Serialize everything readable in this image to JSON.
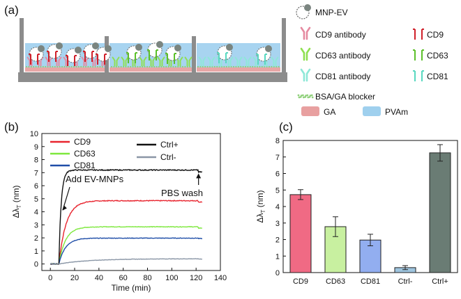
{
  "panel_labels": {
    "a": "(a)",
    "b": "(b)",
    "c": "(c)"
  },
  "schematic_legend": [
    {
      "label": "MNP-EV",
      "kind": "mnp-ev"
    },
    {
      "label": "CD9 antibody",
      "kind": "antibody",
      "color": "#e58aa0"
    },
    {
      "label": "CD63 antibody",
      "kind": "antibody",
      "color": "#8fe050"
    },
    {
      "label": "CD81 antibody",
      "kind": "antibody",
      "color": "#8ee8d8"
    },
    {
      "label": "BSA/GA blocker",
      "kind": "blocker",
      "color": "#8fd07a"
    },
    {
      "label": "GA",
      "kind": "swatch",
      "color": "#e8a0a0"
    },
    {
      "label": "PVAm",
      "kind": "swatch",
      "color": "#9fd0ee"
    },
    {
      "label": "CD9",
      "kind": "receptor",
      "color": "#d0202a"
    },
    {
      "label": "CD63",
      "kind": "receptor",
      "color": "#5cc02a"
    },
    {
      "label": "CD81",
      "kind": "receptor",
      "color": "#58d8c0"
    }
  ],
  "chart_data": [
    {
      "id": "b",
      "type": "line",
      "xlabel": "Time (min)",
      "ylabel": "Δλ_T (nm)",
      "ylabel_main": "Δλ",
      "ylabel_sub": "T",
      "ylabel_unit": " (nm)",
      "xlim": [
        -7,
        140
      ],
      "ylim": [
        -0.5,
        10
      ],
      "xticks": [
        0,
        20,
        40,
        60,
        80,
        100,
        120,
        140
      ],
      "yticks": [
        0,
        1,
        2,
        3,
        4,
        5,
        6,
        7,
        8,
        9,
        10
      ],
      "series": [
        {
          "name": "CD9",
          "color": "#e8242e",
          "plateau": 4.85,
          "tau": 6.0,
          "wash": 4.75,
          "noise": 0.03
        },
        {
          "name": "CD63",
          "color": "#7de83c",
          "plateau": 2.85,
          "tau": 5.5,
          "wash": 2.75,
          "noise": 0.02
        },
        {
          "name": "CD81",
          "color": "#1f4ea8",
          "plateau": 1.98,
          "tau": 5.5,
          "wash": 1.95,
          "noise": 0.02
        },
        {
          "name": "Ctrl+",
          "color": "#111111",
          "plateau": 7.2,
          "tau": 1.9,
          "wash": 7.05,
          "noise": 0.035
        },
        {
          "name": "Ctrl-",
          "color": "#8a96a6",
          "plateau": 0.4,
          "tau": 25,
          "wash": 0.38,
          "noise": 0.015
        }
      ],
      "annotations": {
        "add": "Add EV-MNPs",
        "wash": "PBS wash",
        "add_time": 7,
        "wash_time": 122
      }
    },
    {
      "id": "c",
      "type": "bar",
      "ylabel": "Δλ_T (nm)",
      "ylabel_main": "Δλ",
      "ylabel_sub": "T",
      "ylabel_unit": " (nm)",
      "ylim": [
        0,
        8
      ],
      "yticks": [
        0,
        1,
        2,
        3,
        4,
        5,
        6,
        7,
        8
      ],
      "categories": [
        "CD9",
        "CD63",
        "CD81",
        "Ctrl-",
        "Ctrl+"
      ],
      "values": [
        4.72,
        2.78,
        1.97,
        0.3,
        7.25
      ],
      "errors": [
        0.3,
        0.6,
        0.35,
        0.12,
        0.5
      ],
      "colors": [
        "#f06a84",
        "#c8f0a0",
        "#92aef0",
        "#9ec4de",
        "#6a7c74"
      ]
    }
  ]
}
